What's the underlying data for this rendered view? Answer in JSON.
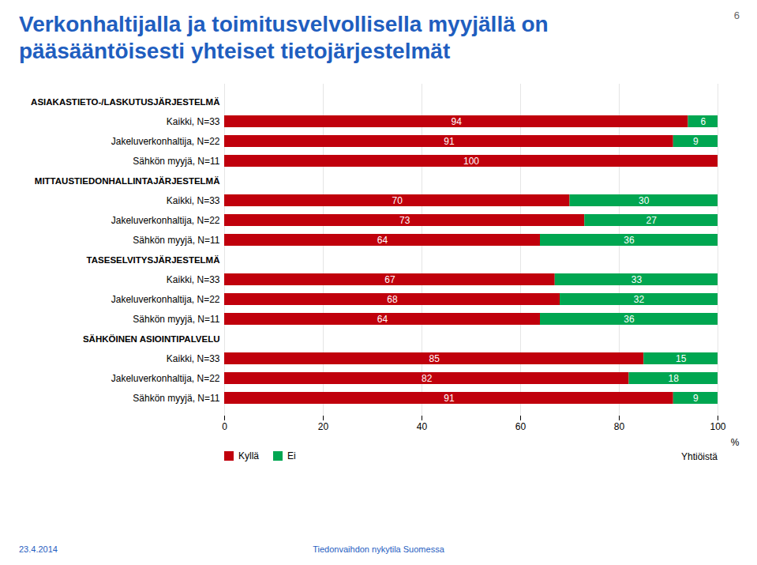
{
  "chart_data": {
    "type": "bar",
    "orientation": "horizontal",
    "stacked": true,
    "data_labels": true,
    "grid": true,
    "legend": "bottom",
    "title": "Verkonhaltijalla ja toimitusvelvollisella myyjällä on pääsääntöisesti yhteiset tietojärjestelmät",
    "xlabel": "%",
    "annotations": [
      "6",
      "Yhtiöistä",
      "23.4.2014",
      "Tiedonvaihdon nykytila Suomessa"
    ],
    "categories": [
      "ASIAKASTIETO-/LASKUTUSJÄRJESTELMÄ",
      "Kaikki, N=33",
      "Jakeluverkonhaltija, N=22",
      "Sähkön myyjä, N=11",
      "MITTAUSTIEDONHALLINTAJÄRJESTELMÄ",
      "Kaikki, N=33",
      "Jakeluverkonhaltija, N=22",
      "Sähkön myyjä, N=11",
      "TASESELVITYSJÄRJESTELMÄ",
      "Kaikki, N=33",
      "Jakeluverkonhaltija, N=22",
      "Sähkön myyjä, N=11",
      "SÄHKÖINEN ASIOINTIPALVELU",
      "Kaikki, N=33",
      "Jakeluverkonhaltija, N=22",
      "Sähkön myyjä, N=11"
    ],
    "series": [
      {
        "name": "Kyllä",
        "color": "#C0000C",
        "values": [
          null,
          94,
          91,
          100,
          null,
          70,
          73,
          64,
          null,
          67,
          68,
          64,
          null,
          85,
          82,
          91
        ]
      },
      {
        "name": "Ei",
        "color": "#00A651",
        "values": [
          null,
          6,
          9,
          0,
          null,
          30,
          27,
          36,
          null,
          33,
          32,
          36,
          null,
          15,
          18,
          9
        ]
      }
    ],
    "xlim": [
      0,
      100
    ],
    "xticks": [
      0,
      20,
      40,
      60,
      80,
      100
    ]
  }
}
